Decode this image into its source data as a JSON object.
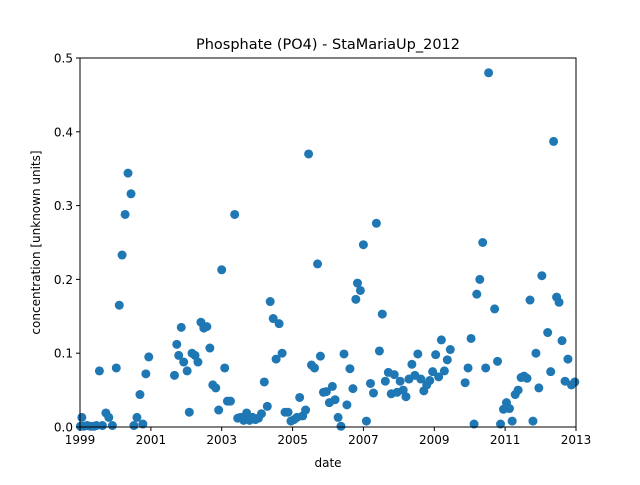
{
  "chart_data": {
    "type": "scatter",
    "title": "Phosphate (PO4) - StaMariaUp_2012",
    "xlabel": "date",
    "ylabel": "concentration [unknown units]",
    "xlim": [
      "1999-01-01",
      "2013-01-01"
    ],
    "ylim": [
      0,
      0.5
    ],
    "x_ticks": [
      "1999",
      "2001",
      "2003",
      "2005",
      "2007",
      "2009",
      "2011",
      "2013"
    ],
    "y_ticks": [
      "0.0",
      "0.1",
      "0.2",
      "0.3",
      "0.4",
      "0.5"
    ],
    "grid": false,
    "marker_color": "#1f77b4",
    "series": [
      {
        "points": [
          [
            "1999-01-05",
            0.001
          ],
          [
            "1999-01-20",
            0.013
          ],
          [
            "1999-02-10",
            0.001
          ],
          [
            "1999-03-15",
            0.002
          ],
          [
            "1999-04-20",
            0.001
          ],
          [
            "1999-05-25",
            0.001
          ],
          [
            "1999-06-20",
            0.002
          ],
          [
            "1999-07-20",
            0.076
          ],
          [
            "1999-08-20",
            0.002
          ],
          [
            "1999-09-25",
            0.019
          ],
          [
            "1999-10-25",
            0.013
          ],
          [
            "1999-12-01",
            0.002
          ],
          [
            "2000-01-10",
            0.08
          ],
          [
            "2000-02-10",
            0.165
          ],
          [
            "2000-03-10",
            0.233
          ],
          [
            "2000-04-10",
            0.288
          ],
          [
            "2000-05-10",
            0.344
          ],
          [
            "2000-06-10",
            0.316
          ],
          [
            "2000-07-10",
            0.002
          ],
          [
            "2000-08-10",
            0.013
          ],
          [
            "2000-09-10",
            0.044
          ],
          [
            "2000-10-10",
            0.004
          ],
          [
            "2000-11-10",
            0.072
          ],
          [
            "2000-12-10",
            0.095
          ],
          [
            "2001-09-01",
            0.07
          ],
          [
            "2001-09-25",
            0.112
          ],
          [
            "2001-10-15",
            0.097
          ],
          [
            "2001-11-10",
            0.135
          ],
          [
            "2001-12-05",
            0.088
          ],
          [
            "2002-01-10",
            0.076
          ],
          [
            "2002-02-01",
            0.02
          ],
          [
            "2002-03-01",
            0.1
          ],
          [
            "2002-04-01",
            0.097
          ],
          [
            "2002-05-01",
            0.088
          ],
          [
            "2002-06-01",
            0.142
          ],
          [
            "2002-07-01",
            0.134
          ],
          [
            "2002-08-01",
            0.136
          ],
          [
            "2002-09-01",
            0.107
          ],
          [
            "2002-10-01",
            0.057
          ],
          [
            "2002-11-01",
            0.053
          ],
          [
            "2002-12-01",
            0.023
          ],
          [
            "2003-01-01",
            0.213
          ],
          [
            "2003-02-01",
            0.08
          ],
          [
            "2003-03-01",
            0.035
          ],
          [
            "2003-04-01",
            0.035
          ],
          [
            "2003-05-15",
            0.288
          ],
          [
            "2003-06-15",
            0.012
          ],
          [
            "2003-07-15",
            0.013
          ],
          [
            "2003-08-15",
            0.009
          ],
          [
            "2003-09-15",
            0.019
          ],
          [
            "2003-10-15",
            0.009
          ],
          [
            "2003-11-15",
            0.013
          ],
          [
            "2003-12-15",
            0.01
          ],
          [
            "2004-01-15",
            0.012
          ],
          [
            "2004-02-15",
            0.018
          ],
          [
            "2004-03-15",
            0.061
          ],
          [
            "2004-04-15",
            0.028
          ],
          [
            "2004-05-15",
            0.17
          ],
          [
            "2004-06-15",
            0.147
          ],
          [
            "2004-07-15",
            0.092
          ],
          [
            "2004-08-15",
            0.14
          ],
          [
            "2004-09-15",
            0.1
          ],
          [
            "2004-10-15",
            0.02
          ],
          [
            "2004-11-15",
            0.02
          ],
          [
            "2004-12-15",
            0.008
          ],
          [
            "2005-01-15",
            0.01
          ],
          [
            "2005-02-15",
            0.013
          ],
          [
            "2005-03-15",
            0.04
          ],
          [
            "2005-04-15",
            0.015
          ],
          [
            "2005-05-15",
            0.023
          ],
          [
            "2005-06-15",
            0.37
          ],
          [
            "2005-07-15",
            0.084
          ],
          [
            "2005-08-15",
            0.08
          ],
          [
            "2005-09-15",
            0.221
          ],
          [
            "2005-10-15",
            0.096
          ],
          [
            "2005-11-15",
            0.047
          ],
          [
            "2005-12-15",
            0.048
          ],
          [
            "2006-01-15",
            0.033
          ],
          [
            "2006-02-15",
            0.055
          ],
          [
            "2006-03-15",
            0.037
          ],
          [
            "2006-04-15",
            0.013
          ],
          [
            "2006-05-15",
            0.001
          ],
          [
            "2006-06-15",
            0.099
          ],
          [
            "2006-07-15",
            0.03
          ],
          [
            "2006-08-15",
            0.079
          ],
          [
            "2006-09-15",
            0.052
          ],
          [
            "2006-10-15",
            0.173
          ],
          [
            "2006-11-01",
            0.195
          ],
          [
            "2006-12-01",
            0.185
          ],
          [
            "2007-01-01",
            0.247
          ],
          [
            "2007-02-01",
            0.008
          ],
          [
            "2007-03-15",
            0.059
          ],
          [
            "2007-04-15",
            0.046
          ],
          [
            "2007-05-15",
            0.276
          ],
          [
            "2007-06-15",
            0.103
          ],
          [
            "2007-07-15",
            0.153
          ],
          [
            "2007-08-15",
            0.062
          ],
          [
            "2007-09-15",
            0.074
          ],
          [
            "2007-10-15",
            0.045
          ],
          [
            "2007-11-15",
            0.071
          ],
          [
            "2007-12-15",
            0.047
          ],
          [
            "2008-01-15",
            0.062
          ],
          [
            "2008-02-15",
            0.05
          ],
          [
            "2008-03-15",
            0.041
          ],
          [
            "2008-04-15",
            0.065
          ],
          [
            "2008-05-15",
            0.085
          ],
          [
            "2008-06-15",
            0.07
          ],
          [
            "2008-07-15",
            0.099
          ],
          [
            "2008-08-15",
            0.065
          ],
          [
            "2008-09-15",
            0.049
          ],
          [
            "2008-10-15",
            0.057
          ],
          [
            "2008-11-15",
            0.063
          ],
          [
            "2008-12-15",
            0.075
          ],
          [
            "2009-01-15",
            0.098
          ],
          [
            "2009-02-15",
            0.068
          ],
          [
            "2009-03-15",
            0.118
          ],
          [
            "2009-04-15",
            0.076
          ],
          [
            "2009-05-15",
            0.091
          ],
          [
            "2009-06-15",
            0.105
          ],
          [
            "2009-11-15",
            0.06
          ],
          [
            "2009-12-15",
            0.08
          ],
          [
            "2010-01-15",
            0.12
          ],
          [
            "2010-02-15",
            0.004
          ],
          [
            "2010-03-15",
            0.18
          ],
          [
            "2010-04-15",
            0.2
          ],
          [
            "2010-05-15",
            0.25
          ],
          [
            "2010-06-15",
            0.08
          ],
          [
            "2010-07-15",
            0.48
          ],
          [
            "2010-09-15",
            0.16
          ],
          [
            "2010-10-15",
            0.089
          ],
          [
            "2010-11-15",
            0.004
          ],
          [
            "2010-12-15",
            0.024
          ],
          [
            "2011-01-15",
            0.033
          ],
          [
            "2011-02-15",
            0.025
          ],
          [
            "2011-03-15",
            0.008
          ],
          [
            "2011-04-15",
            0.044
          ],
          [
            "2011-05-15",
            0.05
          ],
          [
            "2011-06-15",
            0.067
          ],
          [
            "2011-07-15",
            0.069
          ],
          [
            "2011-08-15",
            0.066
          ],
          [
            "2011-09-15",
            0.172
          ],
          [
            "2011-10-15",
            0.008
          ],
          [
            "2011-11-15",
            0.1
          ],
          [
            "2011-12-15",
            0.053
          ],
          [
            "2012-01-15",
            0.205
          ],
          [
            "2012-03-15",
            0.128
          ],
          [
            "2012-04-15",
            0.075
          ],
          [
            "2012-05-15",
            0.387
          ],
          [
            "2012-06-15",
            0.176
          ],
          [
            "2012-07-10",
            0.169
          ],
          [
            "2012-08-10",
            0.117
          ],
          [
            "2012-09-10",
            0.062
          ],
          [
            "2012-10-10",
            0.092
          ],
          [
            "2012-11-15",
            0.057
          ],
          [
            "2012-12-20",
            0.061
          ]
        ]
      }
    ]
  }
}
